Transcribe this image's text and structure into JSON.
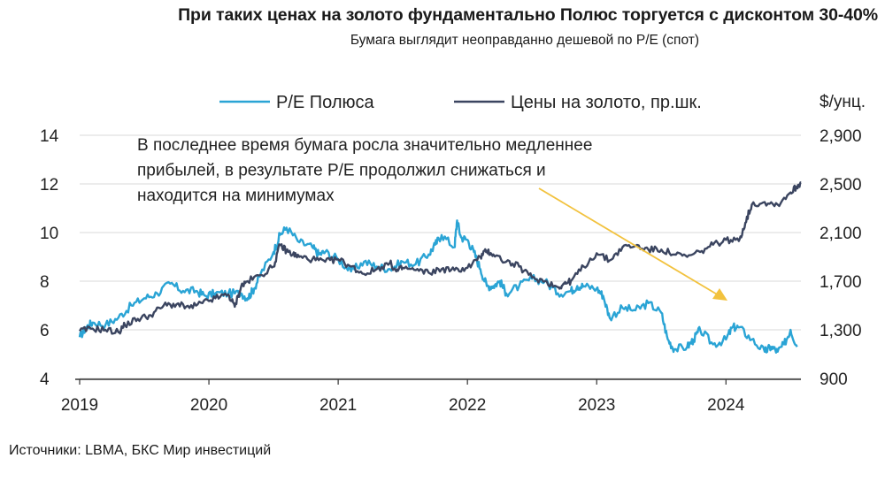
{
  "title": "При таких ценах на золото фундаментально Полюс торгуется с дисконтом 30-40%",
  "subtitle": "Бумага выглядит неоправданно дешевой по P/E (спот)",
  "source": "Источники: LBMA, БКС Мир инвестиций",
  "colors": {
    "pe": "#2aa4d5",
    "gold": "#3b4560",
    "arrow": "#f2c23e",
    "grid": "#d9d9d9"
  },
  "chart_data": {
    "type": "line",
    "title": "При таких ценах на золото фундаментально Полюс торгуется с дисконтом 30-40%",
    "subtitle": "Бумага выглядит неоправданно дешевой по P/E (спот)",
    "x_ticks": [
      "2019",
      "2020",
      "2021",
      "2022",
      "2023",
      "2024"
    ],
    "x_range": [
      2019.0,
      2024.58
    ],
    "y_left": {
      "ticks": [
        "4",
        "6",
        "8",
        "10",
        "12",
        "14"
      ],
      "range": [
        4,
        14
      ]
    },
    "y_right": {
      "unit": "$/унц.",
      "ticks": [
        "900",
        "1,300",
        "1,700",
        "2,100",
        "2,500",
        "2,900"
      ],
      "range": [
        900,
        2900
      ]
    },
    "legend": [
      "P/E Полюса",
      "Цены на золото, пр.шк."
    ],
    "annotation": [
      "В последнее время бумага росла значительно медленнее",
      "прибылей, в результате P/E продолжил снижаться и",
      "находится на минимумах"
    ],
    "series": [
      {
        "name": "P/E Полюса",
        "axis": "left",
        "x": [
          2019.0,
          2019.05,
          2019.1,
          2019.2,
          2019.3,
          2019.4,
          2019.5,
          2019.6,
          2019.7,
          2019.8,
          2019.9,
          2019.97,
          2020.05,
          2020.15,
          2020.25,
          2020.3,
          2020.35,
          2020.4,
          2020.5,
          2020.55,
          2020.6,
          2020.7,
          2020.8,
          2020.85,
          2020.9,
          2021.0,
          2021.1,
          2021.2,
          2021.3,
          2021.4,
          2021.5,
          2021.6,
          2021.7,
          2021.75,
          2021.8,
          2021.9,
          2021.92,
          2021.95,
          2022.0,
          2022.05,
          2022.1,
          2022.15,
          2022.2,
          2022.25,
          2022.3,
          2022.4,
          2022.5,
          2022.6,
          2022.7,
          2022.8,
          2022.85,
          2022.9,
          2023.0,
          2023.05,
          2023.1,
          2023.2,
          2023.3,
          2023.4,
          2023.5,
          2023.55,
          2023.6,
          2023.7,
          2023.75,
          2023.8,
          2023.9,
          2024.0,
          2024.05,
          2024.1,
          2024.2,
          2024.3,
          2024.35,
          2024.4,
          2024.45,
          2024.5,
          2024.55
        ],
        "values": [
          5.7,
          6.1,
          6.3,
          6.2,
          6.5,
          7.0,
          7.3,
          7.5,
          7.9,
          7.6,
          7.6,
          7.4,
          7.5,
          7.5,
          7.5,
          7.3,
          7.7,
          8.3,
          9.2,
          9.9,
          10.2,
          9.6,
          9.4,
          9.1,
          9.2,
          8.9,
          8.4,
          8.8,
          8.6,
          8.5,
          8.8,
          8.7,
          9.1,
          9.5,
          9.9,
          9.4,
          10.5,
          9.8,
          9.7,
          9.2,
          8.5,
          7.8,
          7.8,
          8.0,
          7.5,
          7.8,
          8.1,
          8.0,
          7.5,
          7.6,
          7.8,
          7.8,
          7.7,
          7.4,
          6.5,
          6.9,
          6.8,
          7.1,
          6.7,
          5.6,
          5.2,
          5.3,
          5.6,
          6.0,
          5.4,
          5.6,
          6.1,
          6.1,
          5.6,
          5.1,
          5.3,
          5.1,
          5.4,
          6.0,
          5.3
        ]
      },
      {
        "name": "Цены на золото, пр.шк.",
        "axis": "right",
        "x": [
          2019.0,
          2019.1,
          2019.2,
          2019.3,
          2019.35,
          2019.45,
          2019.55,
          2019.65,
          2019.75,
          2019.85,
          2019.95,
          2020.05,
          2020.15,
          2020.2,
          2020.25,
          2020.3,
          2020.4,
          2020.5,
          2020.55,
          2020.6,
          2020.65,
          2020.7,
          2020.8,
          2020.9,
          2021.0,
          2021.1,
          2021.2,
          2021.3,
          2021.4,
          2021.45,
          2021.5,
          2021.6,
          2021.7,
          2021.8,
          2021.9,
          2022.0,
          2022.1,
          2022.15,
          2022.2,
          2022.3,
          2022.4,
          2022.5,
          2022.6,
          2022.7,
          2022.75,
          2022.8,
          2022.9,
          2023.0,
          2023.1,
          2023.2,
          2023.3,
          2023.4,
          2023.5,
          2023.6,
          2023.7,
          2023.8,
          2023.9,
          2024.0,
          2024.1,
          2024.15,
          2024.2,
          2024.3,
          2024.4,
          2024.5,
          2024.55,
          2024.58
        ],
        "values": [
          1290,
          1310,
          1300,
          1280,
          1340,
          1390,
          1420,
          1500,
          1510,
          1480,
          1520,
          1560,
          1590,
          1490,
          1660,
          1700,
          1750,
          1820,
          2000,
          1950,
          1920,
          1900,
          1880,
          1860,
          1880,
          1820,
          1760,
          1800,
          1850,
          1780,
          1810,
          1790,
          1770,
          1800,
          1790,
          1810,
          1900,
          1950,
          1920,
          1860,
          1820,
          1730,
          1700,
          1650,
          1680,
          1700,
          1820,
          1930,
          1870,
          1980,
          1990,
          1960,
          1960,
          1920,
          1900,
          1940,
          2000,
          2040,
          2030,
          2180,
          2330,
          2350,
          2330,
          2430,
          2480,
          2510
        ]
      }
    ]
  }
}
